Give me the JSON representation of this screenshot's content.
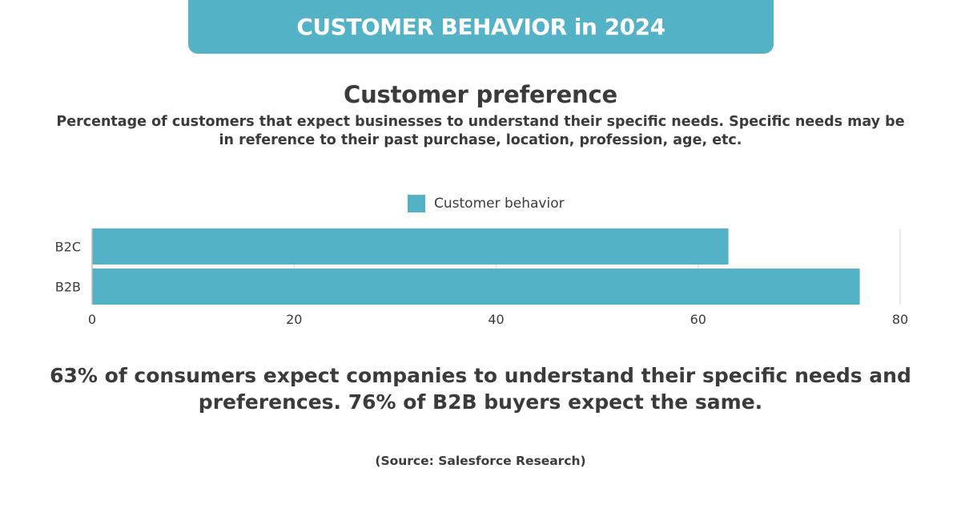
{
  "banner": {
    "title": "CUSTOMER BEHAVIOR in 2024"
  },
  "colors": {
    "accent": "#54b2c6",
    "text": "#3b3b3b",
    "grid": "#e3e3e3"
  },
  "summary": "63% of consumers expect companies to understand their specific needs and preferences. 76% of B2B buyers expect the same.",
  "source": "(Source: Salesforce Research)",
  "chart_data": {
    "type": "bar",
    "orientation": "horizontal",
    "title": "Customer preference",
    "subtitle": "Percentage of customers that expect businesses to understand their specific needs. Specific needs may be in reference to their past purchase, location, profession, age, etc.",
    "categories": [
      "B2C",
      "B2B"
    ],
    "series": [
      {
        "name": "Customer behavior",
        "values": [
          63,
          76
        ]
      }
    ],
    "xlim": [
      0,
      80
    ],
    "xticks": [
      0,
      20,
      40,
      60,
      80
    ],
    "xlabel": "",
    "ylabel": "",
    "grid": true,
    "legend": "top-center"
  }
}
